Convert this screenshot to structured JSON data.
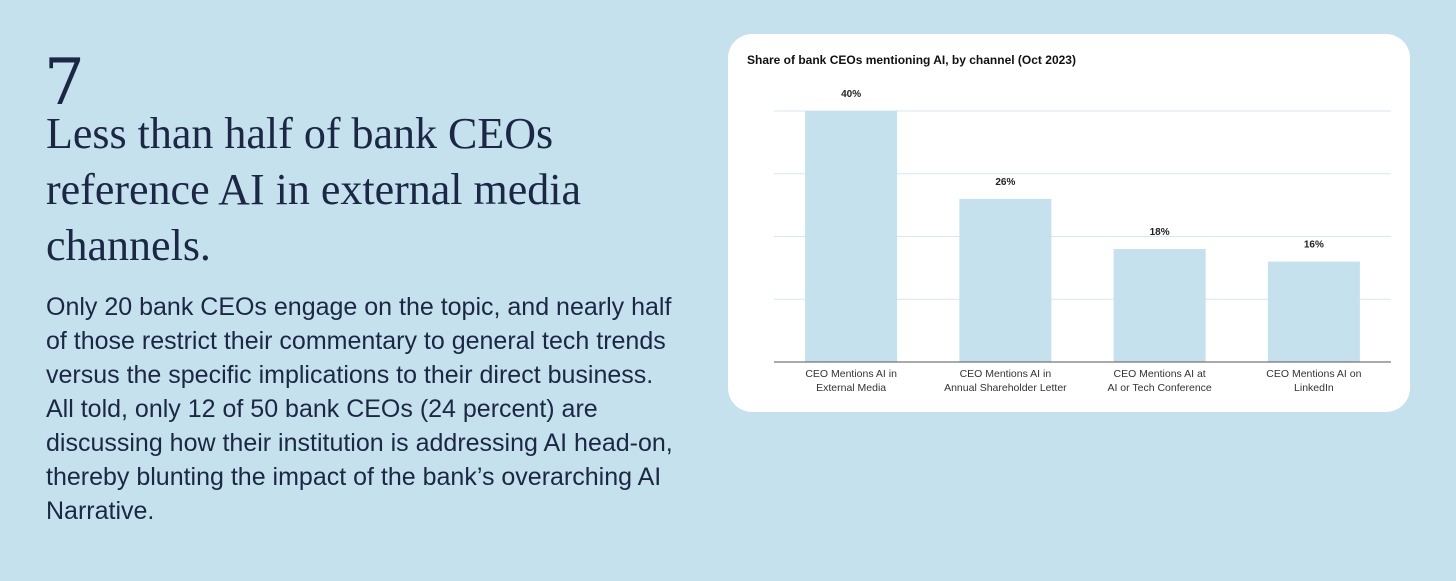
{
  "slide": {
    "number": "7",
    "headline": "Less than half of bank CEOs reference AI in external media channels.",
    "body": "Only 20 bank CEOs engage on the topic, and nearly half of those restrict their commentary to general tech trends versus the specific implications to their direct business. All told, only 12 of 50 bank CEOs (24 percent) are discussing how their institution is addressing AI head-on, thereby blunting the impact of the bank’s overarching AI Narrative."
  },
  "colors": {
    "background": "#c5e1ed",
    "bar": "#c5e1ed",
    "text": "#1b2744",
    "gridline": "#d4e8f1"
  },
  "chart_data": {
    "type": "bar",
    "title": "Share of bank CEOs mentioning AI, by channel (Oct 2023)",
    "categories": [
      [
        "CEO Mentions AI in",
        "External Media"
      ],
      [
        "CEO Mentions AI in",
        "Annual Shareholder Letter"
      ],
      [
        "CEO Mentions AI at",
        "AI or Tech Conference"
      ],
      [
        "CEO Mentions AI on",
        "LinkedIn"
      ]
    ],
    "values": [
      40,
      26,
      18,
      16
    ],
    "data_labels": [
      "40%",
      "26%",
      "18%",
      "16%"
    ],
    "ylim": [
      0,
      40
    ],
    "y_gridlines": [
      10,
      20,
      30,
      40
    ],
    "y_tick_labels_shown": false,
    "grid": true,
    "legend": "none",
    "xlabel": "",
    "ylabel": ""
  }
}
